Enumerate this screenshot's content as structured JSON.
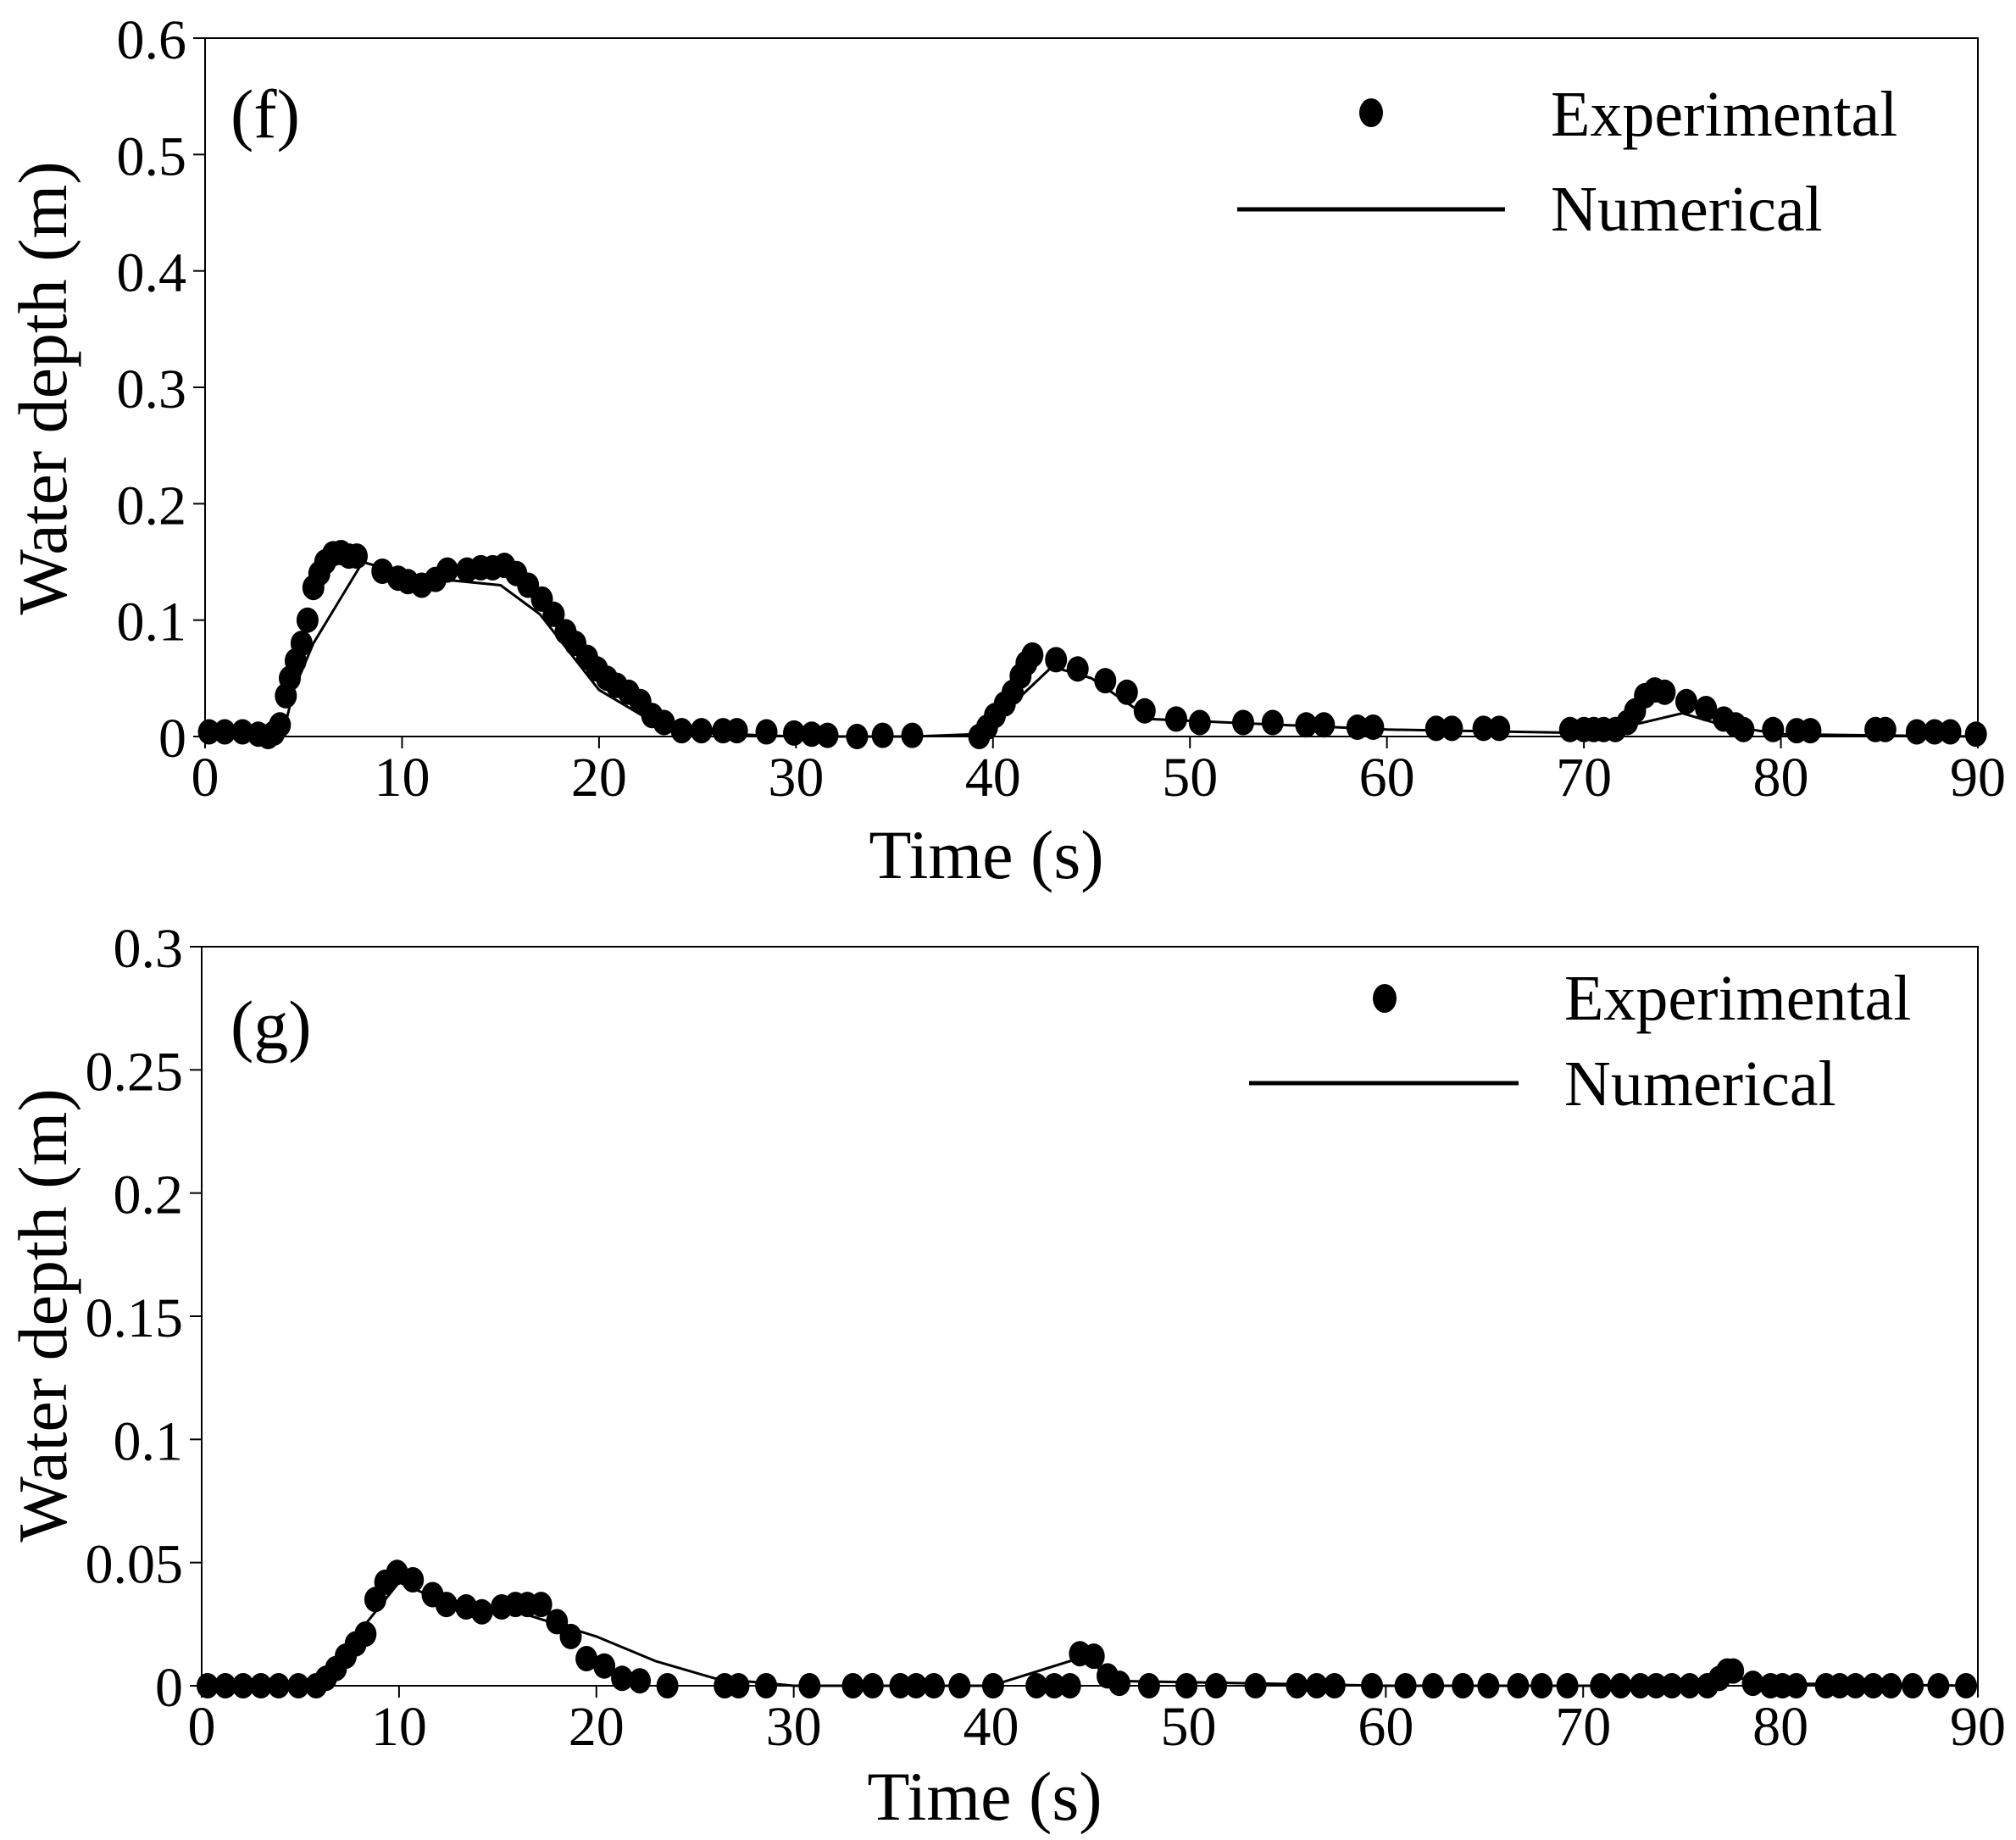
{
  "figure": {
    "panels": [
      "f",
      "g"
    ]
  },
  "chart_data": [
    {
      "type": "scatter",
      "panel_label": "(f)",
      "title": "",
      "xlabel": "Time (s)",
      "ylabel": "Water depth (m)",
      "xlim": [
        0,
        90
      ],
      "ylim": [
        0,
        0.6
      ],
      "x_ticks": [
        0,
        10,
        20,
        30,
        40,
        50,
        60,
        70,
        80,
        90
      ],
      "x_tick_labels": [
        "0",
        "10",
        "20",
        "30",
        "40",
        "50",
        "60",
        "70",
        "80",
        "90"
      ],
      "y_ticks": [
        0,
        0.1,
        0.2,
        0.3,
        0.4,
        0.5,
        0.6
      ],
      "y_tick_labels": [
        "0",
        "0.1",
        "0.2",
        "0.3",
        "0.4",
        "0.5",
        "0.6"
      ],
      "grid": false,
      "legend": {
        "position": "top-right",
        "entries": [
          "Experimental",
          "Numerical"
        ]
      },
      "series": [
        {
          "name": "Experimental",
          "style": "markers",
          "color": "#000000",
          "x": [
            0.2,
            1.0,
            1.9,
            2.7,
            3.2,
            3.5,
            3.8,
            4.1,
            4.3,
            4.6,
            4.9,
            5.2,
            5.5,
            5.8,
            6.1,
            6.5,
            6.9,
            7.3,
            7.7,
            9.0,
            9.8,
            10.3,
            11.0,
            11.7,
            12.3,
            13.3,
            14.0,
            14.6,
            15.2,
            15.8,
            16.4,
            17.1,
            17.7,
            18.3,
            18.8,
            19.4,
            19.9,
            20.4,
            20.9,
            21.5,
            22.1,
            22.7,
            23.3,
            24.2,
            25.2,
            26.3,
            27.0,
            28.5,
            29.9,
            30.8,
            31.6,
            33.1,
            34.4,
            35.9,
            39.3,
            39.7,
            40.1,
            40.6,
            41.0,
            41.4,
            41.7,
            42.0,
            43.2,
            44.3,
            45.7,
            46.8,
            47.7,
            49.3,
            50.5,
            52.7,
            54.2,
            55.9,
            56.8,
            58.5,
            59.3,
            62.5,
            63.3,
            64.9,
            65.7,
            69.3,
            70.0,
            70.5,
            71.0,
            71.6,
            72.2,
            72.6,
            73.1,
            73.6,
            74.1,
            75.2,
            76.2,
            77.1,
            77.7,
            78.1,
            79.6,
            80.8,
            81.5,
            84.8,
            85.3,
            86.9,
            87.8,
            88.6,
            89.9
          ],
          "y": [
            0.004,
            0.004,
            0.004,
            0.002,
            0.0,
            0.003,
            0.01,
            0.035,
            0.05,
            0.065,
            0.08,
            0.1,
            0.128,
            0.14,
            0.15,
            0.157,
            0.158,
            0.155,
            0.155,
            0.142,
            0.136,
            0.133,
            0.13,
            0.135,
            0.143,
            0.143,
            0.145,
            0.145,
            0.147,
            0.14,
            0.13,
            0.118,
            0.105,
            0.09,
            0.08,
            0.068,
            0.058,
            0.05,
            0.044,
            0.038,
            0.03,
            0.018,
            0.012,
            0.005,
            0.005,
            0.005,
            0.005,
            0.004,
            0.003,
            0.002,
            0.001,
            0.0,
            0.001,
            0.001,
            0.0,
            0.008,
            0.018,
            0.028,
            0.038,
            0.052,
            0.063,
            0.07,
            0.066,
            0.058,
            0.048,
            0.038,
            0.022,
            0.015,
            0.012,
            0.012,
            0.012,
            0.01,
            0.01,
            0.008,
            0.008,
            0.007,
            0.007,
            0.007,
            0.007,
            0.006,
            0.006,
            0.006,
            0.006,
            0.006,
            0.012,
            0.022,
            0.035,
            0.04,
            0.038,
            0.03,
            0.024,
            0.015,
            0.01,
            0.006,
            0.006,
            0.005,
            0.005,
            0.006,
            0.006,
            0.004,
            0.004,
            0.004,
            0.002
          ]
        },
        {
          "name": "Numerical",
          "style": "line",
          "color": "#000000",
          "x": [
            0,
            3.0,
            4.0,
            4.5,
            5.5,
            8.0,
            10.0,
            12.0,
            15.0,
            17.0,
            20.0,
            23.0,
            25.0,
            30.0,
            36.0,
            39.0,
            40.0,
            43.0,
            45.0,
            48.0,
            60.0,
            70.0,
            72.5,
            75.0,
            77.0,
            80.0,
            90.0
          ],
          "y": [
            0.0,
            0.0,
            0.005,
            0.04,
            0.08,
            0.15,
            0.14,
            0.135,
            0.13,
            0.105,
            0.04,
            0.01,
            0.003,
            0.0,
            0.0,
            0.002,
            0.012,
            0.06,
            0.05,
            0.015,
            0.006,
            0.003,
            0.01,
            0.02,
            0.01,
            0.002,
            0.0
          ]
        }
      ]
    },
    {
      "type": "scatter",
      "panel_label": "(g)",
      "title": "",
      "xlabel": "Time (s)",
      "ylabel": "Water depth (m)",
      "xlim": [
        0,
        90
      ],
      "ylim": [
        0,
        0.3
      ],
      "x_ticks": [
        0,
        10,
        20,
        30,
        40,
        50,
        60,
        70,
        80,
        90
      ],
      "x_tick_labels": [
        "0",
        "10",
        "20",
        "30",
        "40",
        "50",
        "60",
        "70",
        "80",
        "90"
      ],
      "y_ticks": [
        0,
        0.05,
        0.1,
        0.15,
        0.2,
        0.25,
        0.3
      ],
      "y_tick_labels": [
        "0",
        "0.05",
        "0.1",
        "0.15",
        "0.2",
        "0.25",
        "0.3"
      ],
      "grid": false,
      "legend": {
        "position": "top-right",
        "entries": [
          "Experimental",
          "Numerical"
        ]
      },
      "series": [
        {
          "name": "Experimental",
          "style": "markers",
          "color": "#000000",
          "x": [
            0.3,
            1.2,
            2.1,
            3.0,
            3.9,
            4.9,
            5.8,
            6.3,
            6.8,
            7.3,
            7.8,
            8.3,
            8.8,
            9.3,
            9.9,
            10.7,
            11.7,
            12.4,
            13.4,
            14.2,
            15.2,
            15.9,
            16.5,
            17.2,
            18.0,
            18.7,
            19.5,
            20.4,
            21.3,
            22.2,
            23.6,
            26.5,
            27.2,
            28.6,
            30.8,
            33.0,
            34.0,
            35.4,
            36.2,
            37.1,
            38.4,
            40.1,
            42.3,
            43.2,
            44.0,
            44.5,
            45.2,
            45.9,
            46.5,
            48.0,
            49.9,
            51.4,
            53.4,
            55.5,
            56.5,
            57.4,
            59.3,
            61.0,
            62.4,
            63.9,
            65.2,
            66.7,
            67.9,
            69.2,
            70.9,
            71.9,
            72.9,
            73.7,
            74.5,
            75.4,
            76.3,
            76.9,
            77.3,
            77.6,
            78.6,
            79.5,
            80.1,
            80.8,
            82.3,
            83.0,
            83.8,
            84.7,
            85.6,
            86.7,
            88.0,
            89.4
          ],
          "y": [
            0.0,
            0.0,
            0.0,
            0.0,
            0.0,
            0.0,
            0.0,
            0.003,
            0.007,
            0.012,
            0.017,
            0.021,
            0.035,
            0.042,
            0.046,
            0.043,
            0.037,
            0.033,
            0.032,
            0.03,
            0.032,
            0.033,
            0.033,
            0.033,
            0.026,
            0.02,
            0.011,
            0.008,
            0.003,
            0.002,
            0.0,
            0.0,
            0.0,
            0.0,
            0.0,
            0.0,
            0.0,
            0.0,
            0.0,
            0.0,
            0.0,
            0.0,
            0.0,
            0.0,
            0.0,
            0.013,
            0.012,
            0.004,
            0.001,
            0.0,
            0.0,
            0.0,
            0.0,
            0.0,
            0.0,
            0.0,
            0.0,
            0.0,
            0.0,
            0.0,
            0.0,
            0.0,
            0.0,
            0.0,
            0.0,
            0.0,
            0.0,
            0.0,
            0.0,
            0.0,
            0.0,
            0.003,
            0.006,
            0.006,
            0.001,
            0.0,
            0.0,
            0.0,
            0.0,
            0.0,
            0.0,
            0.0,
            0.0,
            0.0,
            0.0,
            0.0
          ]
        },
        {
          "name": "Numerical",
          "style": "line",
          "color": "#000000",
          "x": [
            0,
            5.0,
            6.0,
            10.0,
            12.0,
            14.0,
            16.0,
            18.0,
            20.0,
            23.0,
            26.0,
            30.0,
            40.0,
            44.0,
            45.0,
            46.0,
            60.0,
            76.0,
            77.5,
            79.0,
            90.0
          ],
          "y": [
            0.0,
            0.0,
            0.002,
            0.042,
            0.035,
            0.032,
            0.03,
            0.025,
            0.02,
            0.01,
            0.003,
            0.0,
            0.0,
            0.01,
            0.011,
            0.002,
            0.0,
            0.0,
            0.004,
            0.001,
            0.0
          ]
        }
      ]
    }
  ]
}
